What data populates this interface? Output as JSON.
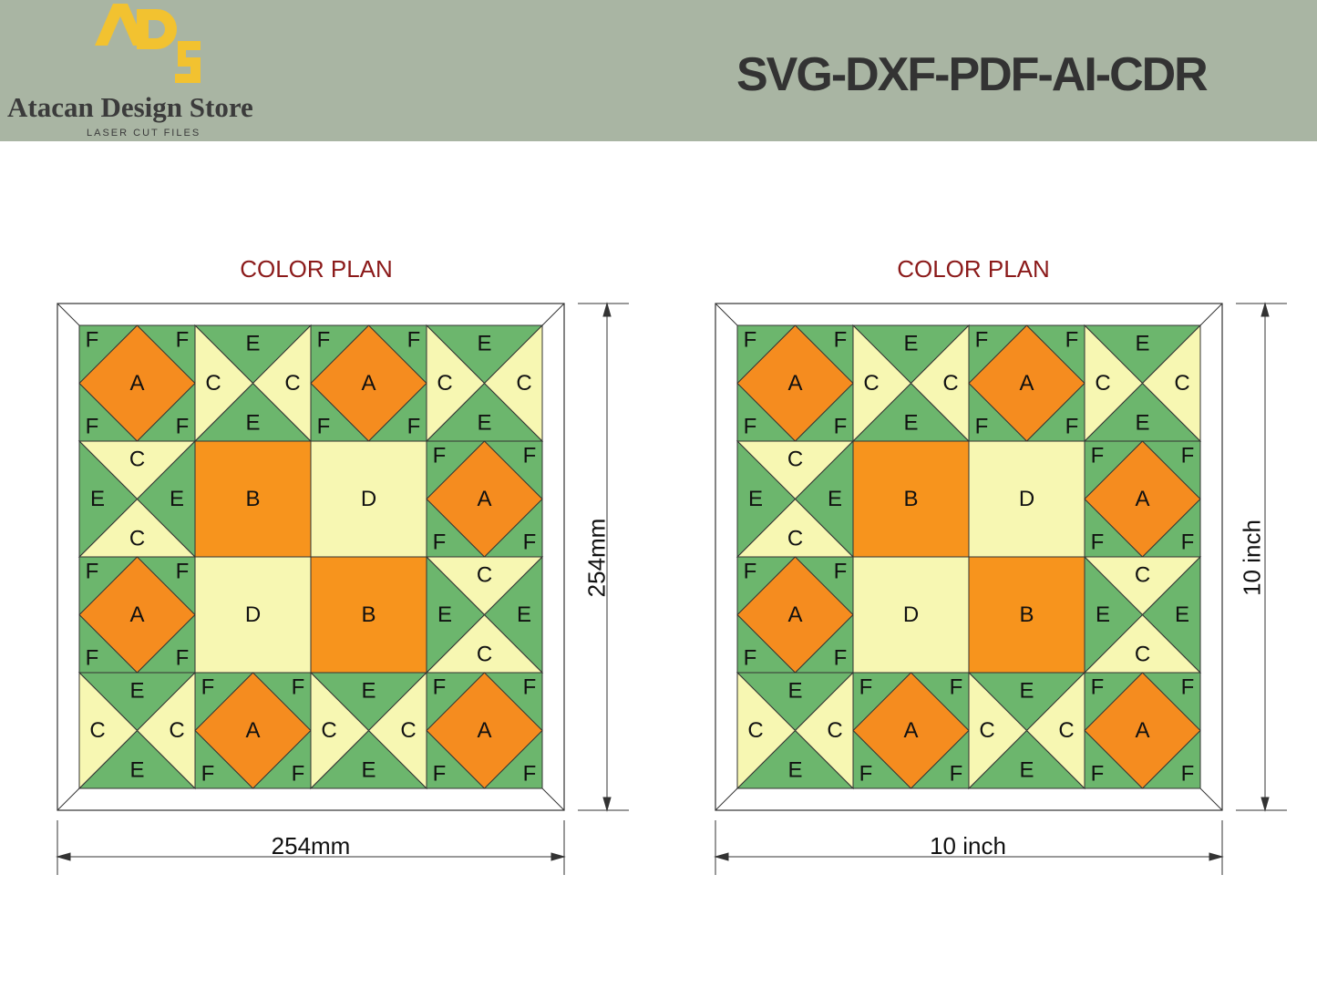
{
  "brand": {
    "logo_mark": "ADS",
    "name": "Atacan Design Store",
    "tagline": "LASER CUT FILES"
  },
  "header": {
    "formats": "SVG-DXF-PDF-AI-CDR",
    "background": "#a9b5a3"
  },
  "colors": {
    "A": "#f58c1f",
    "B": "#f7941d",
    "C": "#f7f7b2",
    "D": "#f7f7b2",
    "E": "#6cb66d",
    "F": "#6cb66d",
    "title": "#8b1a1a",
    "logo_gold": "#f2c230"
  },
  "panels": [
    {
      "title": "COLOR PLAN",
      "width_label": "254mm",
      "height_label": "254mm"
    },
    {
      "title": "COLOR PLAN",
      "width_label": "10 inch",
      "height_label": "10 inch"
    }
  ],
  "grid": [
    [
      "diamond",
      "hourglass-v",
      "diamond",
      "hourglass-v"
    ],
    [
      "hourglass-h",
      "B",
      "D",
      "diamond"
    ],
    [
      "diamond",
      "D",
      "B",
      "hourglass-h"
    ],
    [
      "hourglass-v",
      "diamond",
      "hourglass-v",
      "diamond"
    ]
  ],
  "block_labels": {
    "diamond": {
      "center": "A",
      "corner": "F"
    },
    "hourglass-v": {
      "sides": "C",
      "ends": "E"
    },
    "hourglass-h": {
      "sides": "E",
      "ends": "C"
    },
    "B": "B",
    "D": "D"
  }
}
